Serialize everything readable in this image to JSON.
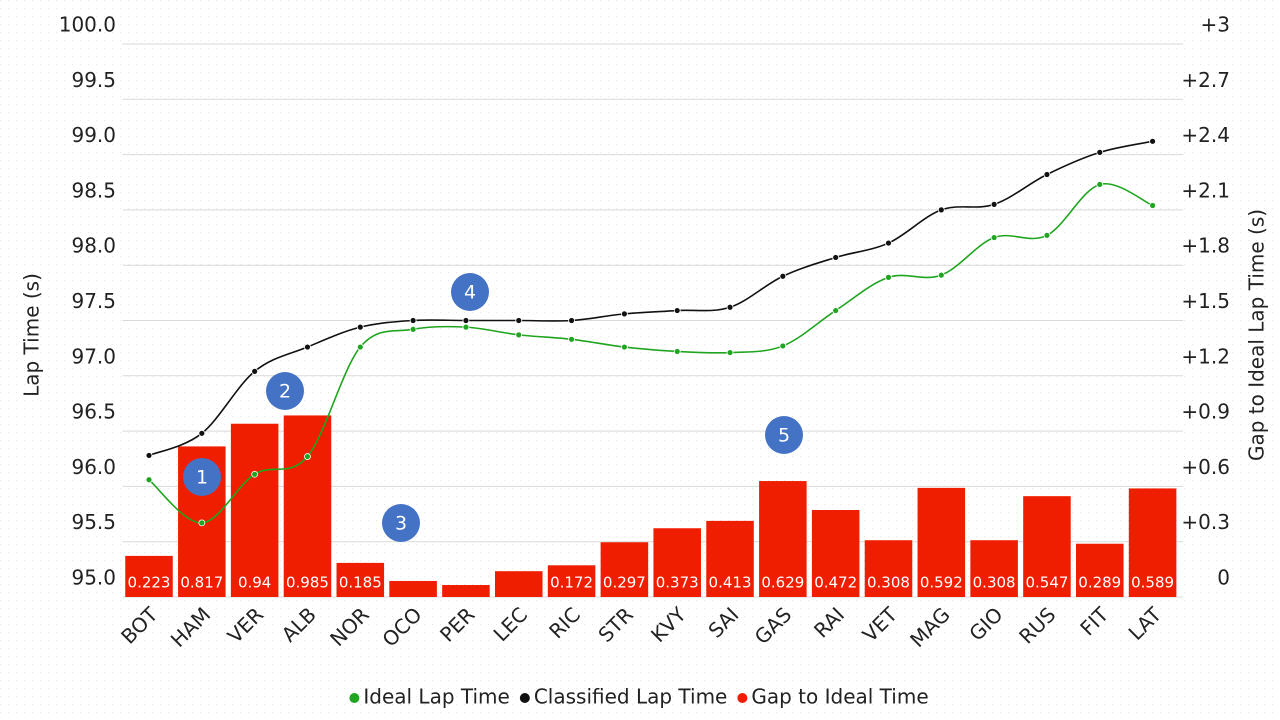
{
  "chart_data": {
    "type": "combo",
    "y_label": "Lap Time (s)",
    "y2_label": "Gap to Ideal Lap Time (s)",
    "categories": [
      "BOT",
      "HAM",
      "VER",
      "ALB",
      "NOR",
      "OCO",
      "PER",
      "LEC",
      "RIC",
      "STR",
      "KVY",
      "SAI",
      "GAS",
      "RAI",
      "VET",
      "MAG",
      "GIO",
      "RUS",
      "FIT",
      "LAT"
    ],
    "ylim": [
      95,
      100
    ],
    "yticks": [
      {
        "value": 95,
        "label": "95.0"
      },
      95.5,
      {
        "value": 96,
        "label": "96.0"
      },
      96.5,
      {
        "value": 97,
        "label": "97.0"
      },
      97.5,
      {
        "value": 98,
        "label": "98.0"
      },
      98.5,
      {
        "value": 99,
        "label": "99.0"
      },
      99.5,
      {
        "value": 100,
        "label": "100.0"
      }
    ],
    "y2lim": [
      0,
      3
    ],
    "y2ticks": [
      0,
      {
        "value": 0.3,
        "label": "+0.3"
      },
      {
        "value": 0.6,
        "label": "+0.6"
      },
      {
        "value": 0.9,
        "label": "+0.9"
      },
      {
        "value": 1.2,
        "label": "+1.2"
      },
      {
        "value": 1.5,
        "label": "+1.5"
      },
      {
        "value": 1.8,
        "label": "+1.8"
      },
      {
        "value": 2.1,
        "label": "+2.1"
      },
      {
        "value": 2.4,
        "label": "+2.4"
      },
      {
        "value": 2.7,
        "label": "+2.7"
      },
      {
        "value": 3,
        "label": "+3"
      }
    ],
    "grid": true,
    "legend": "bottom",
    "series": [
      {
        "name": "Gap to Ideal Time",
        "type": "bar",
        "axis": "y2",
        "color": "#f01e00",
        "values": [
          0.223,
          0.817,
          0.94,
          0.985,
          0.185,
          0.087,
          0.065,
          0.14,
          0.172,
          0.297,
          0.373,
          0.413,
          0.629,
          0.472,
          0.308,
          0.592,
          0.308,
          0.547,
          0.289,
          0.589
        ],
        "value_labels": [
          "0.223",
          "0.817",
          "0.94",
          "0.985",
          "0.185",
          null,
          null,
          null,
          "0.172",
          "0.297",
          "0.373",
          "0.413",
          "0.629",
          "0.472",
          "0.308",
          "0.592",
          "0.308",
          "0.547",
          "0.289",
          "0.589"
        ]
      },
      {
        "name": "Ideal Lap Time",
        "type": "line",
        "color": "#1fa51f",
        "values": [
          96.06,
          95.67,
          96.11,
          96.27,
          97.26,
          97.42,
          97.44,
          97.37,
          97.33,
          97.26,
          97.22,
          97.21,
          97.27,
          97.59,
          97.89,
          97.91,
          98.25,
          98.27,
          98.73,
          98.54
        ]
      },
      {
        "name": "Classified Lap Time",
        "type": "line",
        "color": "#111111",
        "values": [
          96.28,
          96.48,
          97.04,
          97.26,
          97.44,
          97.5,
          97.5,
          97.5,
          97.5,
          97.56,
          97.59,
          97.62,
          97.9,
          98.07,
          98.2,
          98.5,
          98.55,
          98.82,
          99.02,
          99.12
        ]
      }
    ],
    "annotations": [
      "1",
      "2",
      "3",
      "4",
      "5"
    ]
  }
}
